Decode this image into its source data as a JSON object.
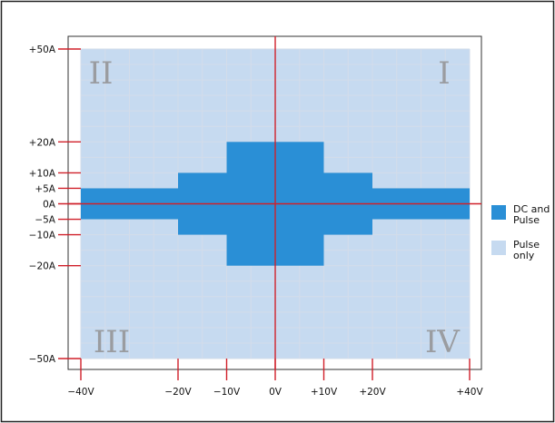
{
  "chart_data": {
    "type": "area",
    "title": "",
    "xlabel": "",
    "ylabel": "",
    "xlim": [
      -40,
      40
    ],
    "ylim": [
      -50,
      50
    ],
    "x_ticks": [
      {
        "value": -40,
        "label": "−40V"
      },
      {
        "value": -20,
        "label": "−20V"
      },
      {
        "value": -10,
        "label": "−10V"
      },
      {
        "value": 0,
        "label": "0V"
      },
      {
        "value": 10,
        "label": "+10V"
      },
      {
        "value": 20,
        "label": "+20V"
      },
      {
        "value": 40,
        "label": "+40V"
      }
    ],
    "y_ticks": [
      {
        "value": 50,
        "label": "+50A"
      },
      {
        "value": 20,
        "label": "+20A"
      },
      {
        "value": 10,
        "label": "+10A"
      },
      {
        "value": 5,
        "label": "+5A"
      },
      {
        "value": 0,
        "label": "0A"
      },
      {
        "value": -5,
        "label": "−5A"
      },
      {
        "value": -10,
        "label": "−10A"
      },
      {
        "value": -20,
        "label": "−20A"
      },
      {
        "value": -50,
        "label": "−50A"
      }
    ],
    "grid": true,
    "legend_position": "right",
    "series": [
      {
        "name": "DC and Pulse",
        "color": "#2a8fd6",
        "regions": [
          {
            "x": [
              -40,
              40
            ],
            "y": [
              -5,
              5
            ]
          },
          {
            "x": [
              -20,
              20
            ],
            "y": [
              -10,
              10
            ]
          },
          {
            "x": [
              -10,
              10
            ],
            "y": [
              -20,
              20
            ]
          }
        ]
      },
      {
        "name": "Pulse only",
        "color": "#c6daf0",
        "regions": [
          {
            "x": [
              -40,
              40
            ],
            "y": [
              -50,
              50
            ]
          }
        ]
      }
    ],
    "quadrants": [
      {
        "label": "I",
        "position": "top-right"
      },
      {
        "label": "II",
        "position": "top-left"
      },
      {
        "label": "III",
        "position": "bottom-left"
      },
      {
        "label": "IV",
        "position": "bottom-right"
      }
    ],
    "legend": [
      {
        "line1": "DC and",
        "line2": "Pulse",
        "color": "#2a8fd6"
      },
      {
        "line1": "Pulse",
        "line2": "only",
        "color": "#c6daf0"
      }
    ],
    "colors": {
      "axis": "#d0202a",
      "grid": "#d3dcea",
      "frame": "#222222"
    }
  }
}
